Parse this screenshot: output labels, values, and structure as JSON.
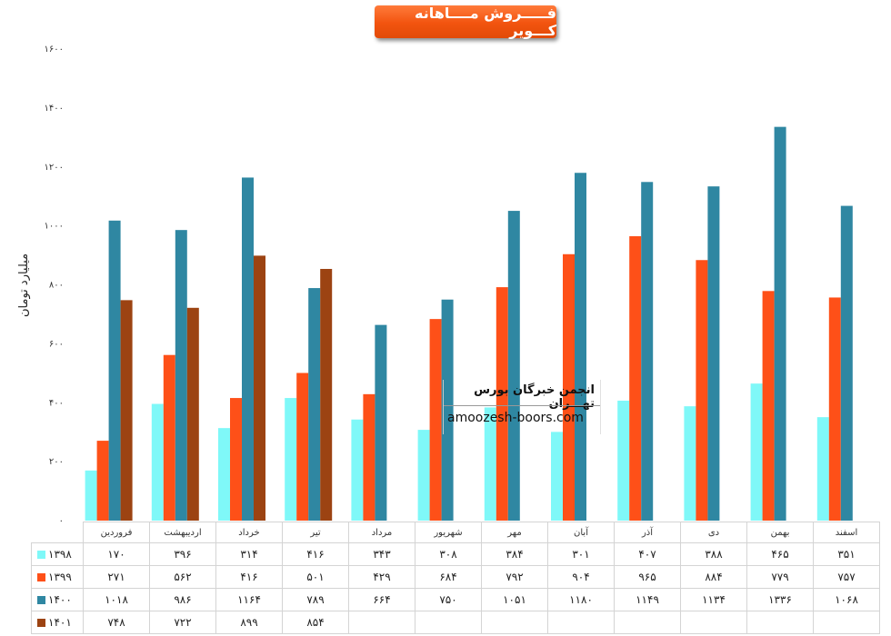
{
  "chart_data": {
    "type": "bar",
    "title": "فـــــروش مــــاهانه کـــویر",
    "ylabel": "میلیارد تومان",
    "xlabel": "",
    "ylim": [
      0,
      1600
    ],
    "ytick_values": [
      0,
      200,
      400,
      600,
      800,
      1000,
      1200,
      1400,
      1600
    ],
    "ytick_labels": [
      "۰",
      "۲۰۰",
      "۴۰۰",
      "۶۰۰",
      "۸۰۰",
      "۱۰۰۰",
      "۱۲۰۰",
      "۱۴۰۰",
      "۱۶۰۰"
    ],
    "grid": false,
    "legend_position": "table-left",
    "categories": [
      "فروردین",
      "اردیبهشت",
      "خرداد",
      "تیر",
      "مرداد",
      "شهریور",
      "مهر",
      "آبان",
      "آذر",
      "دی",
      "بهمن",
      "اسفند"
    ],
    "series": [
      {
        "name": "۱۳۹۸",
        "color": "#7ff8f8",
        "values": [
          170,
          396,
          314,
          416,
          343,
          308,
          384,
          301,
          407,
          388,
          465,
          351
        ],
        "labels": [
          "۱۷۰",
          "۳۹۶",
          "۳۱۴",
          "۴۱۶",
          "۳۴۳",
          "۳۰۸",
          "۳۸۴",
          "۳۰۱",
          "۴۰۷",
          "۳۸۸",
          "۴۶۵",
          "۳۵۱"
        ]
      },
      {
        "name": "۱۳۹۹",
        "color": "#fe5018",
        "values": [
          271,
          562,
          416,
          501,
          429,
          684,
          792,
          904,
          965,
          884,
          779,
          757
        ],
        "labels": [
          "۲۷۱",
          "۵۶۲",
          "۴۱۶",
          "۵۰۱",
          "۴۲۹",
          "۶۸۴",
          "۷۹۲",
          "۹۰۴",
          "۹۶۵",
          "۸۸۴",
          "۷۷۹",
          "۷۵۷"
        ]
      },
      {
        "name": "۱۴۰۰",
        "color": "#2f87a2",
        "values": [
          1018,
          986,
          1164,
          789,
          664,
          750,
          1051,
          1180,
          1149,
          1134,
          1336,
          1068
        ],
        "labels": [
          "۱۰۱۸",
          "۹۸۶",
          "۱۱۶۴",
          "۷۸۹",
          "۶۶۴",
          "۷۵۰",
          "۱۰۵۱",
          "۱۱۸۰",
          "۱۱۴۹",
          "۱۱۳۴",
          "۱۳۳۶",
          "۱۰۶۸"
        ]
      },
      {
        "name": "۱۴۰۱",
        "color": "#9c4312",
        "values": [
          748,
          722,
          899,
          854,
          null,
          null,
          null,
          null,
          null,
          null,
          null,
          null
        ],
        "labels": [
          "۷۴۸",
          "۷۲۲",
          "۸۹۹",
          "۸۵۴",
          "",
          "",
          "",
          "",
          "",
          "",
          "",
          ""
        ]
      }
    ]
  },
  "watermark": {
    "title": "انجمن خبرگان بورس تهـــران",
    "url": "amoozesh-boors.com"
  }
}
